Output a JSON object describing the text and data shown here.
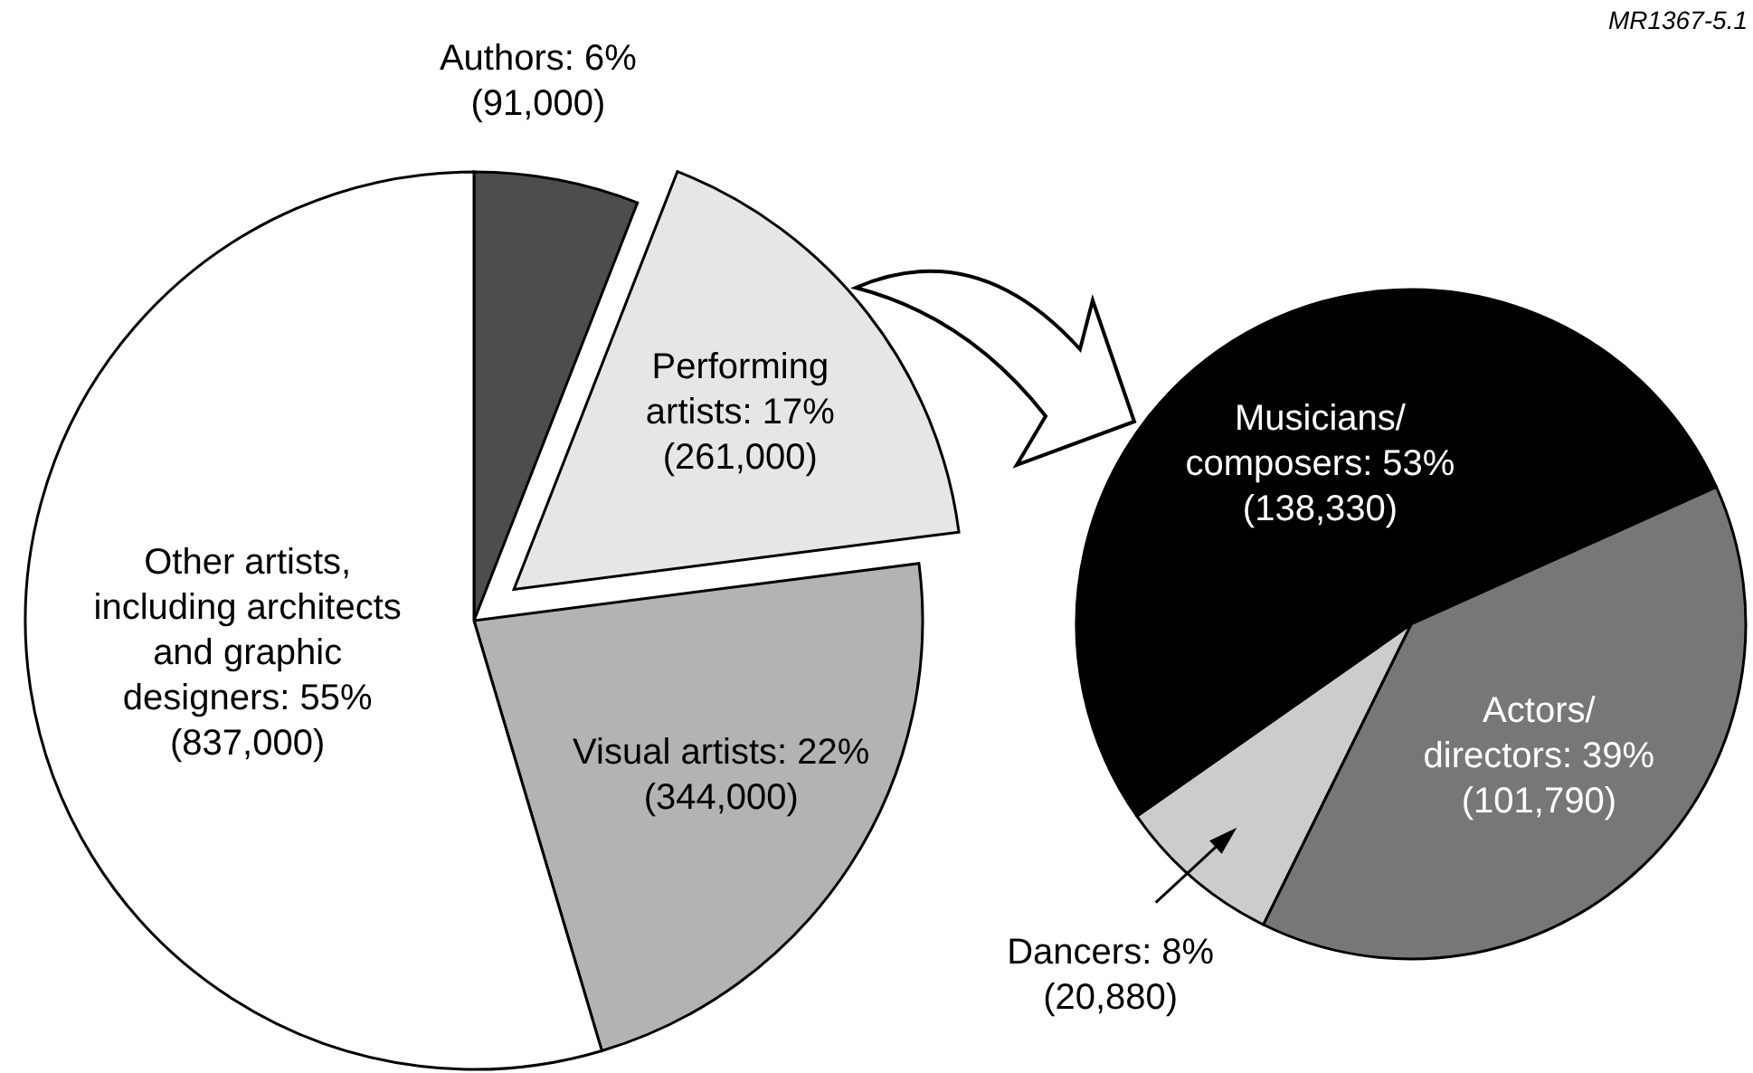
{
  "chart_data": [
    {
      "type": "pie",
      "categories": [
        "Authors",
        "Performing artists",
        "Visual artists",
        "Other artists, including architects and graphic designers"
      ],
      "values": [
        91000,
        261000,
        344000,
        837000
      ],
      "colors": [
        "#4d4d4d",
        "#e6e6e6",
        "#b3b3b3",
        "#ffffff"
      ],
      "value_labels": [
        "6% (91,000)",
        "17% (261,000)",
        "22% (344,000)",
        "55% (837,000)"
      ]
    },
    {
      "type": "pie",
      "categories": [
        "Musicians/composers",
        "Actors/directors",
        "Dancers"
      ],
      "values": [
        138330,
        101790,
        20880
      ],
      "colors": [
        "#000000",
        "#777777",
        "#cccccc"
      ],
      "value_labels": [
        "53% (138,330)",
        "39% (101,790)",
        "8% (20,880)"
      ],
      "annotations": [
        "MR1367-5.1"
      ]
    }
  ]
}
